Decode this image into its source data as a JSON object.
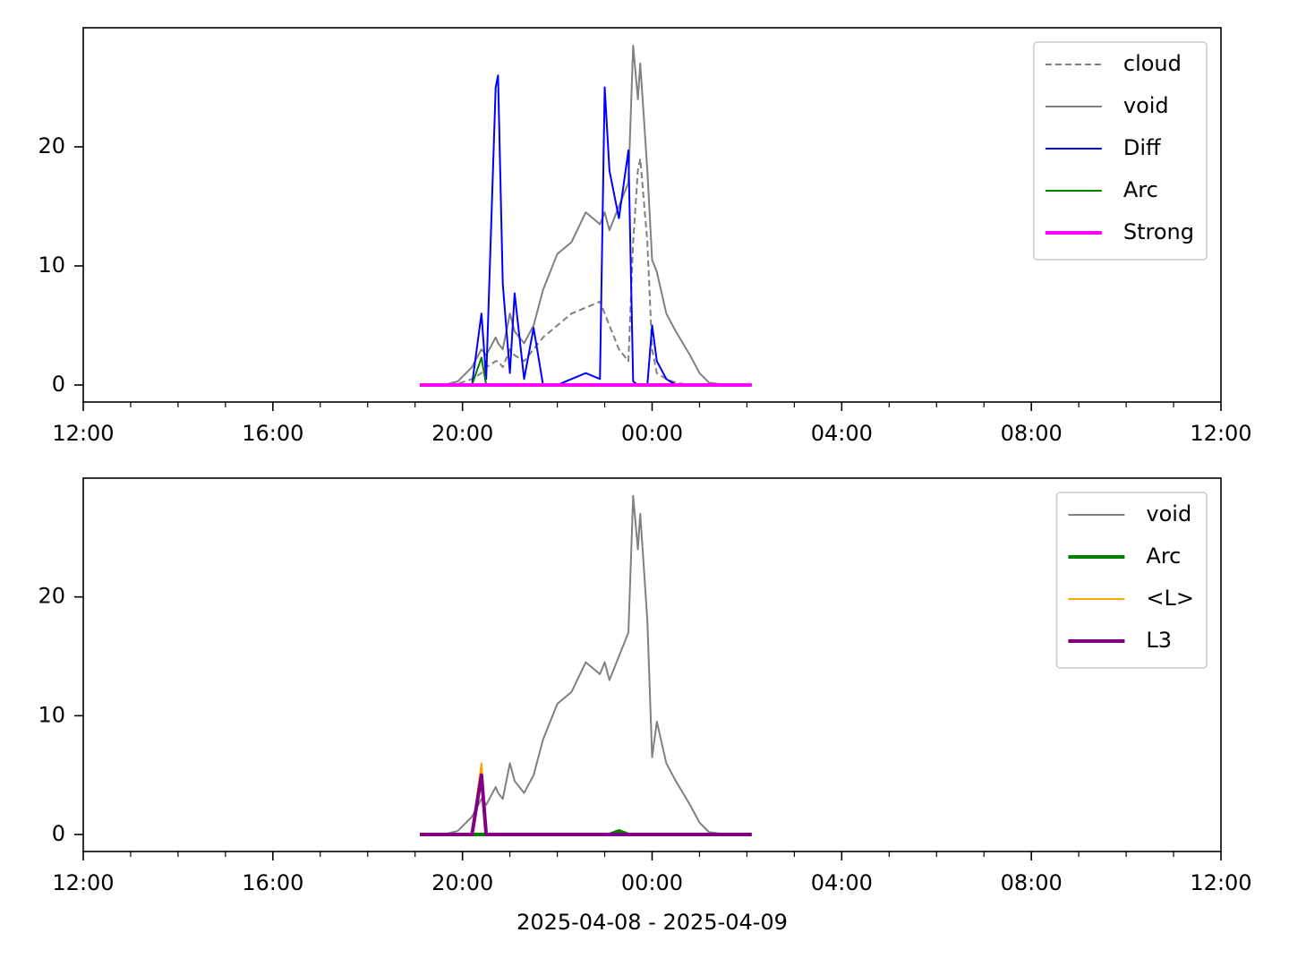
{
  "chart_data": [
    {
      "type": "line",
      "x": [
        19.1,
        19.6,
        19.9,
        20.2,
        20.4,
        20.5,
        20.7,
        20.75,
        20.85,
        21.0,
        21.1,
        21.3,
        21.5,
        21.7,
        22.0,
        22.3,
        22.6,
        22.9,
        23.0,
        23.1,
        23.3,
        23.5,
        23.6,
        23.7,
        23.75,
        23.9,
        24.0,
        24.1,
        24.3,
        24.5,
        24.8,
        25.0,
        25.2,
        25.6,
        26.1
      ],
      "series": [
        {
          "name": "cloud",
          "color": "#808080",
          "linestyle": "dashed",
          "width": 2,
          "values": [
            0,
            0,
            0.1,
            0.5,
            1,
            1.5,
            2,
            2,
            1.5,
            3,
            2.5,
            2,
            3,
            4,
            5,
            6,
            6.5,
            7,
            6,
            5,
            3,
            2,
            12,
            18,
            19,
            12,
            3,
            1,
            0.5,
            0.2,
            0,
            0,
            0,
            0,
            0
          ]
        },
        {
          "name": "void",
          "color": "#808080",
          "linestyle": "solid",
          "width": 2,
          "values": [
            0,
            0,
            0.3,
            1.5,
            3,
            2.5,
            4,
            3.5,
            3,
            6,
            4.5,
            3.5,
            5,
            8,
            11,
            12,
            14.5,
            13.5,
            14.5,
            13,
            15,
            17,
            28.5,
            24,
            27,
            18,
            10.5,
            9.5,
            6,
            4.5,
            2.5,
            1,
            0.2,
            0,
            0
          ]
        },
        {
          "name": "Diff",
          "color": "#0000ff",
          "linestyle": "solid",
          "width": 2,
          "values": [
            0,
            0,
            0,
            0,
            6,
            0.5,
            25,
            26,
            8.5,
            1,
            7.7,
            0.5,
            4.8,
            0,
            0,
            0.5,
            1,
            0.5,
            25,
            18,
            14,
            19.7,
            0.3,
            0,
            0,
            0,
            5,
            2,
            0.5,
            0,
            0,
            0,
            0,
            0,
            0
          ]
        },
        {
          "name": "Arc",
          "color": "#008000",
          "linestyle": "solid",
          "width": 2,
          "values": [
            0,
            0,
            0,
            0,
            2.3,
            0,
            0,
            0,
            0,
            0,
            0,
            0,
            0,
            0,
            0,
            0,
            0,
            0,
            0,
            0,
            0,
            0,
            0,
            0,
            0,
            0,
            0,
            0,
            0,
            0,
            0,
            0,
            0,
            0,
            0
          ]
        },
        {
          "name": "Strong",
          "color": "#ff00ff",
          "linestyle": "solid",
          "width": 4,
          "values": [
            0,
            0,
            0,
            0,
            0,
            0,
            0,
            0,
            0,
            0,
            0,
            0,
            0,
            0,
            0,
            0,
            0,
            0,
            0,
            0,
            0,
            0,
            0,
            0,
            0,
            0,
            0,
            0,
            0,
            0,
            0,
            0,
            0,
            0,
            0
          ]
        }
      ],
      "xlim": [
        12,
        36
      ],
      "xticks": [
        {
          "value": 12,
          "label": "12:00"
        },
        {
          "value": 16,
          "label": "16:00"
        },
        {
          "value": 20,
          "label": "20:00"
        },
        {
          "value": 24,
          "label": "00:00"
        },
        {
          "value": 28,
          "label": "04:00"
        },
        {
          "value": 32,
          "label": "08:00"
        },
        {
          "value": 36,
          "label": "12:00"
        }
      ],
      "xminorticks": [
        13,
        14,
        15,
        17,
        18,
        19,
        21,
        22,
        23,
        25,
        26,
        27,
        29,
        30,
        31,
        33,
        34,
        35
      ],
      "ylim": [
        -1.43,
        30
      ],
      "yticks": [
        0,
        10,
        20
      ],
      "legend": "upper right"
    },
    {
      "type": "line",
      "x": [
        19.1,
        19.6,
        19.9,
        20.2,
        20.4,
        20.5,
        20.7,
        20.75,
        20.85,
        21.0,
        21.1,
        21.3,
        21.5,
        21.7,
        22.0,
        22.3,
        22.6,
        22.9,
        23.0,
        23.1,
        23.3,
        23.5,
        23.6,
        23.7,
        23.75,
        23.9,
        24.0,
        24.1,
        24.3,
        24.5,
        24.8,
        25.0,
        25.2,
        25.6,
        26.1
      ],
      "series": [
        {
          "name": "void",
          "color": "#808080",
          "linestyle": "solid",
          "width": 2,
          "values": [
            0,
            0,
            0.3,
            1.5,
            3,
            2.5,
            4,
            3.5,
            3,
            6,
            4.5,
            3.5,
            5,
            8,
            11,
            12,
            14.5,
            13.5,
            14.5,
            13,
            15,
            17,
            28.5,
            24,
            27,
            18,
            6.5,
            9.5,
            6,
            4.5,
            2.5,
            1,
            0.2,
            0,
            0
          ]
        },
        {
          "name": "Arc",
          "color": "#008000",
          "linestyle": "solid",
          "width": 4,
          "values": [
            0,
            0,
            0,
            0,
            0,
            0,
            0,
            0,
            0,
            0,
            0,
            0,
            0,
            0,
            0,
            0,
            0,
            0,
            0,
            0,
            0.3,
            0,
            0,
            0,
            0,
            0,
            0,
            0,
            0,
            0,
            0,
            0,
            0,
            0,
            0
          ]
        },
        {
          "name": "<L>",
          "color": "#ffa500",
          "linestyle": "solid",
          "width": 2,
          "values": [
            0,
            0,
            0,
            0,
            6,
            0,
            0,
            0,
            0,
            0,
            0,
            0,
            0,
            0,
            0,
            0,
            0,
            0,
            0,
            0,
            0,
            0,
            0,
            0,
            0,
            0,
            0,
            0,
            0,
            0,
            0,
            0,
            0,
            0,
            0
          ]
        },
        {
          "name": "L3",
          "color": "#800080",
          "linestyle": "solid",
          "width": 4,
          "values": [
            0,
            0,
            0,
            0,
            5,
            0,
            0,
            0,
            0,
            0,
            0,
            0,
            0,
            0,
            0,
            0,
            0,
            0,
            0,
            0,
            0,
            0,
            0,
            0,
            0,
            0,
            0,
            0,
            0,
            0,
            0,
            0,
            0,
            0,
            0
          ]
        }
      ],
      "xlim": [
        12,
        36
      ],
      "xticks": [
        {
          "value": 12,
          "label": "12:00"
        },
        {
          "value": 16,
          "label": "16:00"
        },
        {
          "value": 20,
          "label": "20:00"
        },
        {
          "value": 24,
          "label": "00:00"
        },
        {
          "value": 28,
          "label": "04:00"
        },
        {
          "value": 32,
          "label": "08:00"
        },
        {
          "value": 36,
          "label": "12:00"
        }
      ],
      "xminorticks": [
        13,
        14,
        15,
        17,
        18,
        19,
        21,
        22,
        23,
        25,
        26,
        27,
        29,
        30,
        31,
        33,
        34,
        35
      ],
      "ylim": [
        -1.43,
        30
      ],
      "yticks": [
        0,
        10,
        20
      ],
      "xlabel": "2025-04-08 - 2025-04-09",
      "legend": "upper right"
    }
  ]
}
